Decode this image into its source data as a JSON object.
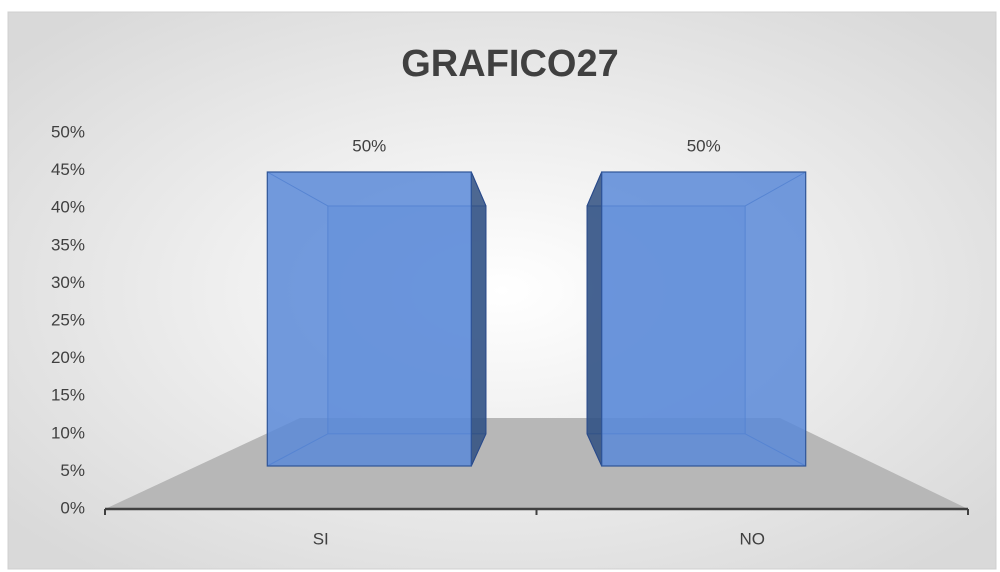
{
  "chart_data": {
    "type": "bar3d",
    "title": "GRAFICO27",
    "categories": [
      "SI",
      "NO"
    ],
    "values": [
      50,
      50
    ],
    "value_labels": [
      "50%",
      "50%"
    ],
    "color": "#5a8ad8",
    "ylim": [
      0,
      50
    ],
    "yticks": [
      {
        "value": 0,
        "label": "0%"
      },
      {
        "value": 5,
        "label": "5%"
      },
      {
        "value": 10,
        "label": "10%"
      },
      {
        "value": 15,
        "label": "15%"
      },
      {
        "value": 20,
        "label": "20%"
      },
      {
        "value": 25,
        "label": "25%"
      },
      {
        "value": 30,
        "label": "30%"
      },
      {
        "value": 35,
        "label": "35%"
      },
      {
        "value": 40,
        "label": "40%"
      },
      {
        "value": 45,
        "label": "45%"
      },
      {
        "value": 50,
        "label": "50%"
      }
    ],
    "grid": false
  }
}
